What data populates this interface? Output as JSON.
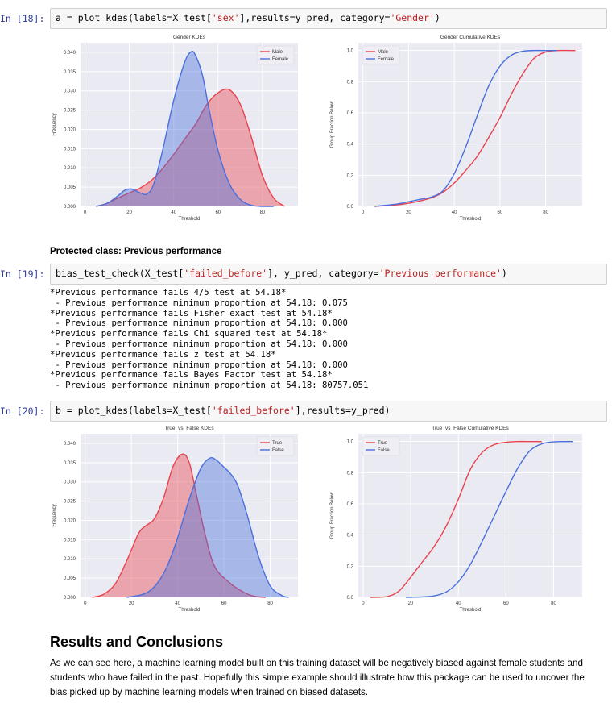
{
  "cell18": {
    "prompt": "In [18]:",
    "code_parts": [
      "a = plot_kdes(labels=X_test[",
      "'sex'",
      "],results=y_pred, category=",
      "'Gender'",
      ")"
    ]
  },
  "cell19_heading": "Protected class: Previous performance",
  "cell19": {
    "prompt": "In [19]:",
    "code_parts": [
      "bias_test_check(X_test[",
      "'failed_before'",
      "], y_pred, category=",
      "'Previous performance'",
      ")"
    ],
    "output": [
      "*Previous performance fails 4/5 test at 54.18*",
      " - Previous performance minimum proportion at 54.18: 0.075",
      "*Previous performance fails Fisher exact test at 54.18*",
      " - Previous performance minimum proportion at 54.18: 0.000",
      "*Previous performance fails Chi squared test at 54.18*",
      " - Previous performance minimum proportion at 54.18: 0.000",
      "*Previous performance fails z test at 54.18*",
      " - Previous performance minimum proportion at 54.18: 0.000",
      "*Previous performance fails Bayes Factor test at 54.18*",
      " - Previous performance minimum proportion at 54.18: 80757.051"
    ]
  },
  "cell20": {
    "prompt": "In [20]:",
    "code_parts": [
      "b = plot_kdes(labels=X_test[",
      "'failed_before'",
      "],results=y_pred)"
    ]
  },
  "results": {
    "title": "Results and Conclusions",
    "paragraph": "As we can see here, a machine learning model built on this training dataset will be negatively biased against female students and students who have failed in the past. Hopefully this simple example should illustrate how this package can be used to uncover the bias picked up by machine learning models when trained on biased datasets."
  },
  "colors": {
    "red": "#e8434e",
    "blue": "#4a6fdc",
    "plot_bg": "#eaeaf2"
  },
  "chart_data": [
    {
      "type": "area",
      "title": "Gender KDEs",
      "xlabel": "Threshold",
      "ylabel": "Frequency",
      "xlim": [
        -2,
        96
      ],
      "ylim": [
        0,
        0.0425
      ],
      "xticks": [
        "0",
        "20",
        "40",
        "60",
        "80"
      ],
      "xtick_vals": [
        0,
        20,
        40,
        60,
        80
      ],
      "yticks": [
        "0.000",
        "0.005",
        "0.010",
        "0.015",
        "0.020",
        "0.025",
        "0.030",
        "0.035",
        "0.040"
      ],
      "ytick_vals": [
        0,
        0.005,
        0.01,
        0.015,
        0.02,
        0.025,
        0.03,
        0.035,
        0.04
      ],
      "legend": "top-right",
      "series": [
        {
          "name": "Male",
          "color": "#e8434e",
          "x": [
            5,
            10,
            15,
            20,
            25,
            30,
            35,
            40,
            45,
            50,
            55,
            60,
            65,
            70,
            75,
            80,
            85,
            90
          ],
          "y": [
            0,
            0.0008,
            0.0022,
            0.0035,
            0.0048,
            0.0068,
            0.0098,
            0.0135,
            0.0175,
            0.0215,
            0.0265,
            0.0295,
            0.0303,
            0.0265,
            0.018,
            0.008,
            0.0022,
            0
          ]
        },
        {
          "name": "Female",
          "color": "#4a6fdc",
          "x": [
            5,
            10,
            15,
            18,
            21,
            25,
            28,
            31,
            35,
            40,
            45,
            48,
            50,
            53,
            56,
            60,
            65,
            70,
            75,
            80,
            85
          ],
          "y": [
            0,
            0.0008,
            0.0028,
            0.0042,
            0.0045,
            0.0035,
            0.0032,
            0.0058,
            0.0145,
            0.0275,
            0.0375,
            0.0402,
            0.039,
            0.034,
            0.025,
            0.0145,
            0.006,
            0.0018,
            0.0003,
            0,
            0
          ]
        }
      ]
    },
    {
      "type": "line",
      "title": "Gender Cumulative KDEs",
      "xlabel": "Threshold",
      "ylabel": "Group Fraction Below",
      "xlim": [
        -2,
        96
      ],
      "ylim": [
        0,
        1.05
      ],
      "xticks": [
        "0",
        "20",
        "40",
        "60",
        "80"
      ],
      "xtick_vals": [
        0,
        20,
        40,
        60,
        80
      ],
      "yticks": [
        "0.0",
        "0.2",
        "0.4",
        "0.6",
        "0.8",
        "1.0"
      ],
      "ytick_vals": [
        0,
        0.2,
        0.4,
        0.6,
        0.8,
        1.0
      ],
      "legend": "top-left",
      "series": [
        {
          "name": "Male",
          "color": "#e8434e",
          "x": [
            5,
            15,
            20,
            25,
            30,
            35,
            40,
            45,
            50,
            55,
            60,
            65,
            70,
            75,
            80,
            85,
            93
          ],
          "y": [
            0,
            0.01,
            0.02,
            0.035,
            0.055,
            0.09,
            0.15,
            0.23,
            0.32,
            0.44,
            0.57,
            0.72,
            0.85,
            0.95,
            0.99,
            1.0,
            1.0
          ]
        },
        {
          "name": "Female",
          "color": "#4a6fdc",
          "x": [
            5,
            15,
            20,
            25,
            30,
            35,
            40,
            45,
            50,
            55,
            60,
            65,
            70,
            75,
            80,
            85
          ],
          "y": [
            0,
            0.015,
            0.03,
            0.045,
            0.06,
            0.1,
            0.21,
            0.38,
            0.58,
            0.77,
            0.9,
            0.97,
            0.995,
            1.0,
            1.0,
            1.0
          ]
        }
      ]
    },
    {
      "type": "area",
      "title": "True_vs_False KDEs",
      "xlabel": "Threshold",
      "ylabel": "Frequency",
      "xlim": [
        -2,
        92
      ],
      "ylim": [
        0,
        0.0425
      ],
      "xticks": [
        "0",
        "20",
        "40",
        "60",
        "80"
      ],
      "xtick_vals": [
        0,
        20,
        40,
        60,
        80
      ],
      "yticks": [
        "0.000",
        "0.005",
        "0.010",
        "0.015",
        "0.020",
        "0.025",
        "0.030",
        "0.035",
        "0.040"
      ],
      "ytick_vals": [
        0,
        0.005,
        0.01,
        0.015,
        0.02,
        0.025,
        0.03,
        0.035,
        0.04
      ],
      "legend": "top-right",
      "series": [
        {
          "name": "True",
          "color": "#e8434e",
          "x": [
            3,
            8,
            13,
            18,
            23,
            26,
            30,
            34,
            38,
            42,
            45,
            48,
            52,
            56,
            62,
            68,
            73,
            78
          ],
          "y": [
            0,
            0.0008,
            0.0035,
            0.0095,
            0.0165,
            0.0185,
            0.0205,
            0.026,
            0.034,
            0.0372,
            0.035,
            0.027,
            0.016,
            0.008,
            0.004,
            0.0015,
            0.0003,
            0
          ]
        },
        {
          "name": "False",
          "color": "#4a6fdc",
          "x": [
            18,
            25,
            30,
            35,
            40,
            45,
            50,
            54,
            57,
            60,
            63,
            66,
            70,
            75,
            80,
            85,
            88
          ],
          "y": [
            0,
            0.0008,
            0.0028,
            0.0075,
            0.0155,
            0.0255,
            0.0335,
            0.0362,
            0.0355,
            0.0338,
            0.032,
            0.029,
            0.0215,
            0.0105,
            0.003,
            0.0005,
            0
          ]
        }
      ]
    },
    {
      "type": "line",
      "title": "True_vs_False Cumulative KDEs",
      "xlabel": "Threshold",
      "ylabel": "Group Fraction Below",
      "xlim": [
        -2,
        92
      ],
      "ylim": [
        0,
        1.05
      ],
      "xticks": [
        "0",
        "20",
        "40",
        "60",
        "80"
      ],
      "xtick_vals": [
        0,
        20,
        40,
        60,
        80
      ],
      "yticks": [
        "0.0",
        "0.2",
        "0.4",
        "0.6",
        "0.8",
        "1.0"
      ],
      "ytick_vals": [
        0,
        0.2,
        0.4,
        0.6,
        0.8,
        1.0
      ],
      "legend": "top-left",
      "series": [
        {
          "name": "True",
          "color": "#e8434e",
          "x": [
            3,
            10,
            15,
            20,
            25,
            30,
            35,
            40,
            45,
            50,
            55,
            60,
            65,
            70,
            75
          ],
          "y": [
            0,
            0.005,
            0.04,
            0.13,
            0.23,
            0.33,
            0.46,
            0.63,
            0.82,
            0.93,
            0.98,
            0.995,
            1.0,
            1.0,
            1.0
          ]
        },
        {
          "name": "False",
          "color": "#4a6fdc",
          "x": [
            18,
            25,
            30,
            35,
            40,
            45,
            50,
            55,
            60,
            65,
            70,
            75,
            80,
            85,
            88
          ],
          "y": [
            0,
            0.003,
            0.01,
            0.035,
            0.1,
            0.21,
            0.36,
            0.52,
            0.68,
            0.83,
            0.94,
            0.985,
            0.998,
            1.0,
            1.0
          ]
        }
      ]
    }
  ]
}
